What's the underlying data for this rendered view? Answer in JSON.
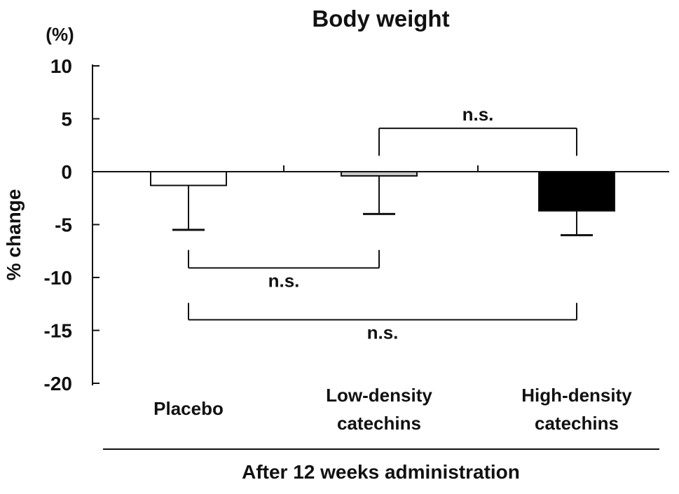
{
  "chart_data": {
    "type": "bar",
    "title": "Body weight",
    "y_unit": "(%)",
    "ylabel": "% change",
    "xlabel": "After 12 weeks administration",
    "ylim": [
      -20,
      10
    ],
    "yticks": [
      10,
      5,
      0,
      -5,
      -10,
      -15,
      -20
    ],
    "grid": false,
    "legend": null,
    "categories": [
      "Placebo",
      "Low-density catechins",
      "High-density catechins"
    ],
    "category_lines": [
      [
        "Placebo"
      ],
      [
        "Low-density",
        "catechins"
      ],
      [
        "High-density",
        "catechins"
      ]
    ],
    "values": [
      -1.3,
      -0.4,
      -3.7
    ],
    "error_bar_ends": [
      -5.5,
      -4.0,
      -6.0
    ],
    "bar_fills": [
      "#ffffff",
      "#c8c8c8",
      "#000000"
    ],
    "bar_edge_color": "#111111",
    "comparisons": [
      {
        "from": 1,
        "to": 2,
        "label": "n.s.",
        "bar_y": 4.1,
        "tick_to": 1.5,
        "label_side": "above"
      },
      {
        "from": 0,
        "to": 1,
        "label": "n.s.",
        "bar_y": -9.1,
        "tick_to": -7.4,
        "label_side": "below"
      },
      {
        "from": 0,
        "to": 2,
        "label": "n.s.",
        "bar_y": -14.0,
        "tick_to": -12.4,
        "label_side": "below"
      }
    ]
  }
}
